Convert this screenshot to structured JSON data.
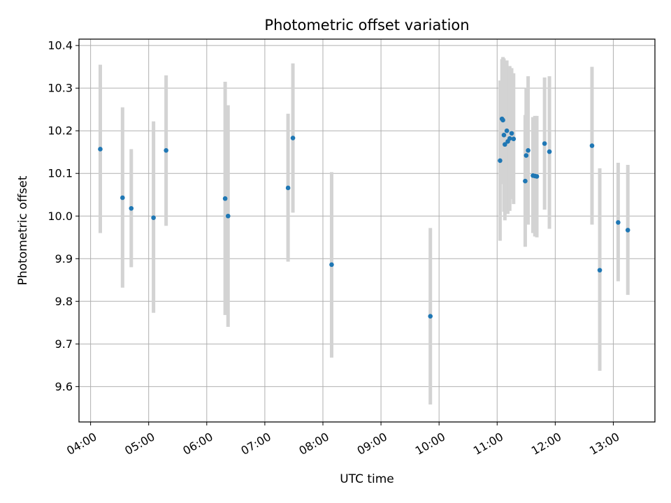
{
  "chart_data": {
    "type": "scatter",
    "title": "Photometric offset variation",
    "xlabel": "UTC time",
    "ylabel": "Photometric offset",
    "x_axis": "time",
    "x_range": [
      "03:48",
      "13:43"
    ],
    "y_range": [
      9.517,
      10.415
    ],
    "x_ticks": [
      "04:00",
      "05:00",
      "06:00",
      "07:00",
      "08:00",
      "09:00",
      "10:00",
      "11:00",
      "12:00",
      "13:00"
    ],
    "y_ticks": [
      9.6,
      9.7,
      9.8,
      9.9,
      10.0,
      10.1,
      10.2,
      10.3,
      10.4
    ],
    "y_tick_labels": [
      "9.6",
      "9.7",
      "9.8",
      "9.9",
      "10.0",
      "10.1",
      "10.2",
      "10.3",
      "10.4"
    ],
    "grid": true,
    "point_color": "#1f77b4",
    "errorbar_color": "#d3d3d3",
    "points": [
      {
        "t": "04:10",
        "y": 10.157,
        "lo": 9.96,
        "hi": 10.355
      },
      {
        "t": "04:33",
        "y": 10.043,
        "lo": 9.832,
        "hi": 10.255
      },
      {
        "t": "04:42",
        "y": 10.018,
        "lo": 9.88,
        "hi": 10.157
      },
      {
        "t": "05:05",
        "y": 9.996,
        "lo": 9.773,
        "hi": 10.222
      },
      {
        "t": "05:18",
        "y": 10.154,
        "lo": 9.977,
        "hi": 10.33
      },
      {
        "t": "06:19",
        "y": 10.041,
        "lo": 9.768,
        "hi": 10.315
      },
      {
        "t": "06:22",
        "y": 10.0,
        "lo": 9.74,
        "hi": 10.26
      },
      {
        "t": "07:24",
        "y": 10.066,
        "lo": 9.893,
        "hi": 10.24
      },
      {
        "t": "07:29",
        "y": 10.183,
        "lo": 10.008,
        "hi": 10.358
      },
      {
        "t": "08:09",
        "y": 9.886,
        "lo": 9.668,
        "hi": 10.103
      },
      {
        "t": "09:51",
        "y": 9.765,
        "lo": 9.558,
        "hi": 9.972
      },
      {
        "t": "11:03",
        "y": 10.13,
        "lo": 9.942,
        "hi": 10.318
      },
      {
        "t": "11:05",
        "y": 10.228,
        "lo": 10.088,
        "hi": 10.368
      },
      {
        "t": "11:06",
        "y": 10.225,
        "lo": 10.075,
        "hi": 10.373
      },
      {
        "t": "11:07",
        "y": 10.19,
        "lo": 10.01,
        "hi": 10.37
      },
      {
        "t": "11:08",
        "y": 10.168,
        "lo": 9.99,
        "hi": 10.345
      },
      {
        "t": "11:10",
        "y": 10.2,
        "lo": 10.035,
        "hi": 10.365
      },
      {
        "t": "11:11",
        "y": 10.175,
        "lo": 10.005,
        "hi": 10.345
      },
      {
        "t": "11:13",
        "y": 10.182,
        "lo": 10.012,
        "hi": 10.352
      },
      {
        "t": "11:15",
        "y": 10.194,
        "lo": 10.04,
        "hi": 10.347
      },
      {
        "t": "11:17",
        "y": 10.181,
        "lo": 10.028,
        "hi": 10.335
      },
      {
        "t": "11:29",
        "y": 10.082,
        "lo": 9.928,
        "hi": 10.237
      },
      {
        "t": "11:30",
        "y": 10.142,
        "lo": 9.98,
        "hi": 10.3
      },
      {
        "t": "11:32",
        "y": 10.154,
        "lo": 9.98,
        "hi": 10.328
      },
      {
        "t": "11:37",
        "y": 10.095,
        "lo": 9.96,
        "hi": 10.232
      },
      {
        "t": "11:39",
        "y": 10.094,
        "lo": 9.952,
        "hi": 10.235
      },
      {
        "t": "11:41",
        "y": 10.093,
        "lo": 9.95,
        "hi": 10.235
      },
      {
        "t": "11:49",
        "y": 10.17,
        "lo": 10.015,
        "hi": 10.325
      },
      {
        "t": "11:54",
        "y": 10.151,
        "lo": 9.97,
        "hi": 10.328
      },
      {
        "t": "12:38",
        "y": 10.165,
        "lo": 9.98,
        "hi": 10.35
      },
      {
        "t": "12:46",
        "y": 9.873,
        "lo": 9.637,
        "hi": 10.112
      },
      {
        "t": "13:05",
        "y": 9.985,
        "lo": 9.847,
        "hi": 10.125
      },
      {
        "t": "13:15",
        "y": 9.967,
        "lo": 9.815,
        "hi": 10.12
      }
    ]
  }
}
